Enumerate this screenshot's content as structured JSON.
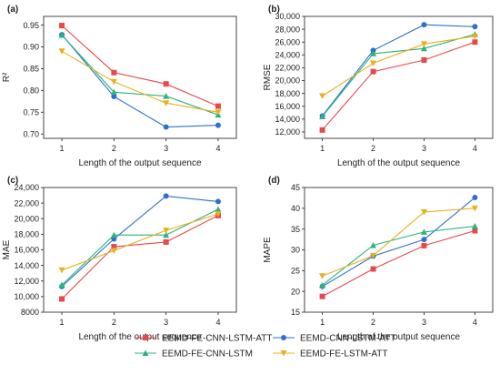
{
  "colors": {
    "EEMD-FE-CNN-LSTM-ATT": "#e8474c",
    "EEMD-CNN-LSTM-ATT": "#2f6fcf",
    "EEMD-FE-CNN-LSTM": "#2db37c",
    "EEMD-FE-LSTM-ATT": "#e8b020"
  },
  "markers": {
    "EEMD-FE-CNN-LSTM-ATT": "square",
    "EEMD-CNN-LSTM-ATT": "circle",
    "EEMD-FE-CNN-LSTM": "triangle-up",
    "EEMD-FE-LSTM-ATT": "triangle-down"
  },
  "legend": {
    "placement": "bottom",
    "items": [
      "EEMD-FE-CNN-LSTM-ATT",
      "EEMD-CNN-LSTM-ATT",
      "EEMD-FE-CNN-LSTM",
      "EEMD-FE-LSTM-ATT"
    ]
  },
  "chart_data": [
    {
      "type": "line",
      "panel_label": "(a)",
      "xlabel": "Length of the output sequence",
      "ylabel": "R²",
      "x": [
        1,
        2,
        3,
        4
      ],
      "ylim": [
        0.69,
        0.97
      ],
      "yticks": [
        "0.70",
        "0.75",
        "0.80",
        "0.85",
        "0.90",
        "0.95"
      ],
      "ytick_values": [
        0.7,
        0.75,
        0.8,
        0.85,
        0.9,
        0.95
      ],
      "series": [
        {
          "name": "EEMD-FE-CNN-LSTM-ATT",
          "values": [
            0.949,
            0.841,
            0.815,
            0.764
          ]
        },
        {
          "name": "EEMD-CNN-LSTM-ATT",
          "values": [
            0.928,
            0.786,
            0.716,
            0.72
          ]
        },
        {
          "name": "EEMD-FE-CNN-LSTM",
          "values": [
            0.927,
            0.796,
            0.787,
            0.744
          ]
        },
        {
          "name": "EEMD-FE-LSTM-ATT",
          "values": [
            0.89,
            0.82,
            0.771,
            0.75
          ]
        }
      ]
    },
    {
      "type": "line",
      "panel_label": "(b)",
      "xlabel": "Length of the output sequence",
      "ylabel": "RMSE",
      "x": [
        1,
        2,
        3,
        4
      ],
      "ylim": [
        11000,
        30000
      ],
      "yticks": [
        "12,000",
        "14,000",
        "16,000",
        "18,000",
        "20,000",
        "22,000",
        "24,000",
        "26,000",
        "28,000",
        "30,000"
      ],
      "ytick_values": [
        12000,
        14000,
        16000,
        18000,
        20000,
        22000,
        24000,
        26000,
        28000,
        30000
      ],
      "series": [
        {
          "name": "EEMD-FE-CNN-LSTM-ATT",
          "values": [
            12300,
            21400,
            23200,
            26000
          ]
        },
        {
          "name": "EEMD-CNN-LSTM-ATT",
          "values": [
            14500,
            24700,
            28700,
            28400
          ]
        },
        {
          "name": "EEMD-FE-CNN-LSTM",
          "values": [
            14400,
            24200,
            25000,
            27200
          ]
        },
        {
          "name": "EEMD-FE-LSTM-ATT",
          "values": [
            17600,
            22700,
            25700,
            26900
          ]
        }
      ]
    },
    {
      "type": "line",
      "panel_label": "(c)",
      "xlabel": "Length of the output sequence",
      "ylabel": "MAE",
      "x": [
        1,
        2,
        3,
        4
      ],
      "ylim": [
        8000,
        24000
      ],
      "yticks": [
        "8000",
        "10,000",
        "12,000",
        "14,000",
        "16,000",
        "18,000",
        "20,000",
        "22,000",
        "24,000"
      ],
      "ytick_values": [
        8000,
        10000,
        12000,
        14000,
        16000,
        18000,
        20000,
        22000,
        24000
      ],
      "series": [
        {
          "name": "EEMD-FE-CNN-LSTM-ATT",
          "values": [
            9700,
            16400,
            17000,
            20400
          ]
        },
        {
          "name": "EEMD-CNN-LSTM-ATT",
          "values": [
            11300,
            17400,
            22900,
            22200
          ]
        },
        {
          "name": "EEMD-FE-CNN-LSTM",
          "values": [
            11500,
            17900,
            17900,
            21200
          ]
        },
        {
          "name": "EEMD-FE-LSTM-ATT",
          "values": [
            13400,
            15900,
            18500,
            20600
          ]
        }
      ]
    },
    {
      "type": "line",
      "panel_label": "(d)",
      "xlabel": "Length of the output sequence",
      "ylabel": "MAPE",
      "x": [
        1,
        2,
        3,
        4
      ],
      "ylim": [
        15,
        45
      ],
      "yticks": [
        "15",
        "20",
        "25",
        "30",
        "35",
        "40",
        "45"
      ],
      "ytick_values": [
        15,
        20,
        25,
        30,
        35,
        40,
        45
      ],
      "series": [
        {
          "name": "EEMD-FE-CNN-LSTM-ATT",
          "values": [
            18.8,
            25.4,
            31.0,
            34.6
          ]
        },
        {
          "name": "EEMD-CNN-LSTM-ATT",
          "values": [
            21.2,
            28.5,
            32.5,
            42.6
          ]
        },
        {
          "name": "EEMD-FE-CNN-LSTM",
          "values": [
            21.5,
            31.1,
            34.3,
            35.7
          ]
        },
        {
          "name": "EEMD-FE-LSTM-ATT",
          "values": [
            23.7,
            28.6,
            39.1,
            40.0
          ]
        }
      ]
    }
  ]
}
